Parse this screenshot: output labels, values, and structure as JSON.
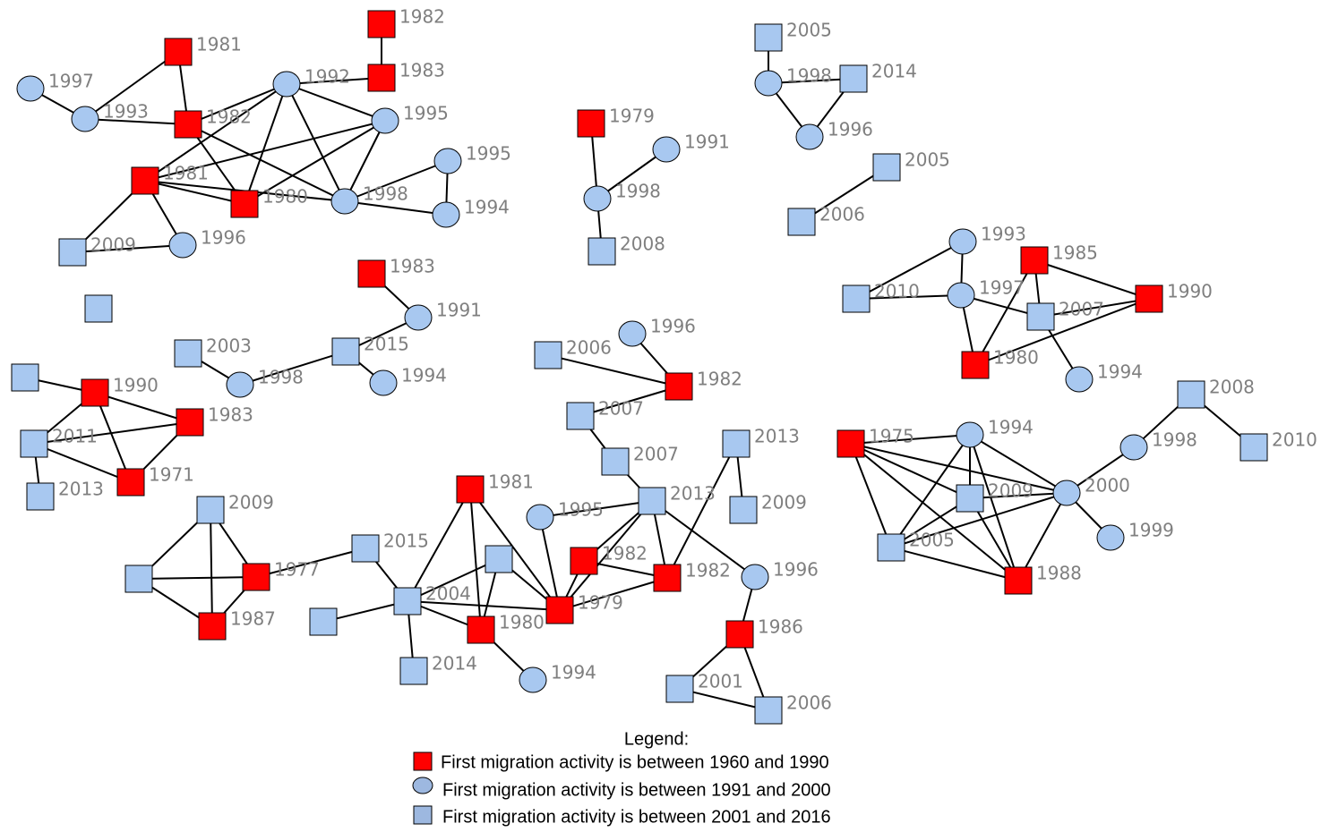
{
  "nodes": [
    {
      "label": "1981"
    },
    {
      "label": "1997"
    },
    {
      "label": "1993"
    },
    {
      "label": "1982"
    },
    {
      "label": "1992"
    },
    {
      "label": "1995"
    },
    {
      "label": "1981"
    },
    {
      "label": "1980"
    },
    {
      "label": "1998"
    },
    {
      "label": "1995"
    },
    {
      "label": "1994"
    },
    {
      "label": "2009"
    },
    {
      "label": "1996"
    },
    {
      "label": "1982"
    },
    {
      "label": "1983"
    },
    {
      "label": "1983"
    },
    {
      "label": "1991"
    },
    {
      "label": "2015"
    },
    {
      "label": "1994"
    },
    {
      "label": "2003"
    },
    {
      "label": "1998"
    },
    {
      "label": "1990"
    },
    {
      "label": "1983"
    },
    {
      "label": "2011"
    },
    {
      "label": "1971"
    },
    {
      "label": "2013"
    },
    {
      "label": "2009"
    },
    {
      "label": "1977"
    },
    {
      "label": "1987"
    },
    {
      "label": "2015"
    },
    {
      "label": "2004"
    },
    {
      "label": "2014"
    },
    {
      "label": "1981"
    },
    {
      "label": "1980"
    },
    {
      "label": "1994"
    },
    {
      "label": "1979"
    },
    {
      "label": "1982"
    },
    {
      "label": "1995"
    },
    {
      "label": "2013"
    },
    {
      "label": "2007"
    },
    {
      "label": "2007"
    },
    {
      "label": "2006"
    },
    {
      "label": "1996"
    },
    {
      "label": "1982"
    },
    {
      "label": "1982"
    },
    {
      "label": "2013"
    },
    {
      "label": "2009"
    },
    {
      "label": "1996"
    },
    {
      "label": "1986"
    },
    {
      "label": "2001"
    },
    {
      "label": "2006"
    },
    {
      "label": "1979"
    },
    {
      "label": "1991"
    },
    {
      "label": "1998"
    },
    {
      "label": "2008"
    },
    {
      "label": "2005"
    },
    {
      "label": "1998"
    },
    {
      "label": "2014"
    },
    {
      "label": "1996"
    },
    {
      "label": "2005"
    },
    {
      "label": "2006"
    },
    {
      "label": "1993"
    },
    {
      "label": "2010"
    },
    {
      "label": "1997"
    },
    {
      "label": "1985"
    },
    {
      "label": "1990"
    },
    {
      "label": "2007"
    },
    {
      "label": "1980"
    },
    {
      "label": "1994"
    },
    {
      "label": "1975"
    },
    {
      "label": "1994"
    },
    {
      "label": "2009"
    },
    {
      "label": "2000"
    },
    {
      "label": "2005"
    },
    {
      "label": "1988"
    },
    {
      "label": "1999"
    },
    {
      "label": "1998"
    },
    {
      "label": "2008"
    },
    {
      "label": "2010"
    }
  ],
  "legend": {
    "title": "Legend:",
    "items": [
      "First migration activity is between 1960 and 1990",
      "First migration activity is between 1991 and 2000",
      "First migration activity is between 2001 and 2016"
    ]
  }
}
